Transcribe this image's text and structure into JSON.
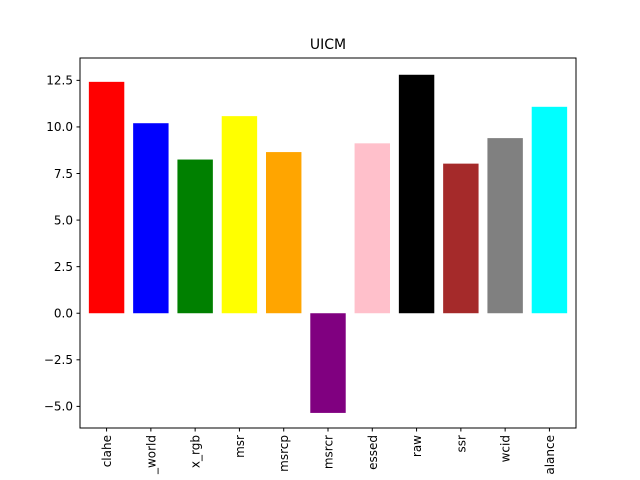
{
  "chart_data": {
    "type": "bar",
    "title": "UICM",
    "xlabel": "",
    "ylabel": "",
    "categories": [
      "clahe",
      "_world",
      "x_rgb",
      "msr",
      "msrcp",
      "msrcr",
      "essed",
      "raw",
      "ssr",
      "wcid",
      "alance"
    ],
    "values": [
      12.42,
      10.2,
      8.25,
      10.58,
      8.65,
      -5.35,
      9.12,
      12.8,
      8.03,
      9.4,
      11.08
    ],
    "colors": [
      "#ff0000",
      "#0000ff",
      "#008000",
      "#ffff00",
      "#ffa500",
      "#800080",
      "#ffc0cb",
      "#000000",
      "#a52a2a",
      "#808080",
      "#00ffff"
    ],
    "ylim": [
      -6.16,
      13.7
    ],
    "yticks": [
      -5.0,
      -2.5,
      0.0,
      2.5,
      5.0,
      7.5,
      10.0,
      12.5
    ],
    "ytick_labels": [
      "−5.0",
      "−2.5",
      "0.0",
      "2.5",
      "5.0",
      "7.5",
      "10.0",
      "12.5"
    ],
    "grid": false,
    "legend": "none"
  }
}
